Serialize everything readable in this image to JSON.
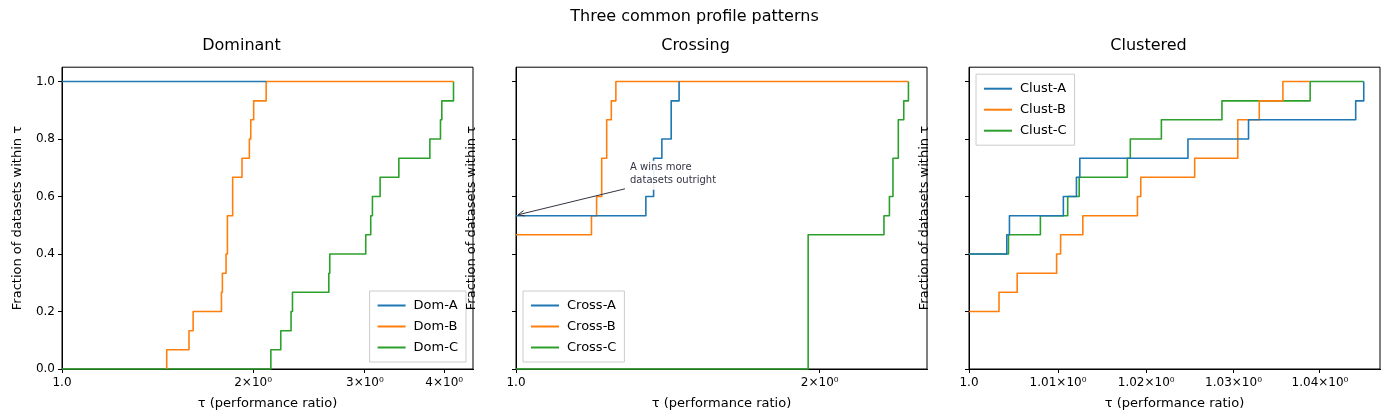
{
  "chart_data": [
    {
      "type": "step",
      "title": "Dominant",
      "xlabel": "τ (performance ratio)",
      "ylabel": "Fraction of datasets within τ",
      "log": "x",
      "legend": "bottom right",
      "annotations": [
        "Three common profile patterns"
      ],
      "xlim": [
        1,
        4.44
      ],
      "xticks": [
        {
          "value": 1,
          "label": "1.0"
        },
        {
          "value": 2,
          "label": "2×10⁰"
        },
        {
          "value": 3,
          "label": "3×10⁰"
        },
        {
          "value": 4,
          "label": "4×10⁰"
        }
      ],
      "ylim": [
        0,
        1.05
      ],
      "yticks": [
        {
          "value": 0,
          "label": "0.0"
        },
        0.2,
        0.4,
        0.6,
        0.8,
        {
          "value": 1,
          "label": "1.0"
        }
      ],
      "series": [
        {
          "name": "Dom-A",
          "color": "#1f77b4",
          "x": [
            1,
            2.097
          ],
          "values": [
            1,
            1
          ]
        },
        {
          "name": "Dom-B",
          "color": "#ff7f0e",
          "x": [
            1.462,
            1.462,
            1.585,
            1.609,
            1.783,
            1.789,
            1.813,
            1.822,
            1.857,
            1.921,
            1.973,
            1.983,
            2.004,
            2.097,
            4.137
          ],
          "values": [
            0,
            0.067,
            0.133,
            0.2,
            0.267,
            0.333,
            0.4,
            0.533,
            0.667,
            0.733,
            0.8,
            0.867,
            0.933,
            1,
            1
          ]
        },
        {
          "name": "Dom-C",
          "color": "#2ca02c",
          "x": [
            1,
            2.133,
            2.211,
            2.295,
            2.307,
            2.632,
            2.641,
            3.009,
            3.064,
            3.083,
            3.17,
            3.393,
            3.797,
            3.946,
            3.965,
            4.137
          ],
          "values": [
            0,
            0.067,
            0.133,
            0.2,
            0.267,
            0.333,
            0.4,
            0.467,
            0.533,
            0.6,
            0.667,
            0.733,
            0.8,
            0.867,
            0.933,
            1
          ]
        }
      ]
    },
    {
      "type": "step",
      "title": "Crossing",
      "xlabel": "τ (performance ratio)",
      "ylabel": "Fraction of datasets within τ",
      "log": "x",
      "legend": "bottom left",
      "tick_labels": "x",
      "annotations": [
        {
          "text": "A wins more\ndatasets outright",
          "x": 1,
          "y": 0.533
        }
      ],
      "xlim": [
        1,
        2.555
      ],
      "xticks": [
        {
          "value": 1,
          "label": "1.0"
        },
        {
          "value": 2,
          "label": "2×10⁰"
        }
      ],
      "ylim": [
        0,
        1.05
      ],
      "yticks": [
        0,
        0.2,
        0.4,
        0.6,
        0.8,
        1
      ],
      "series": [
        {
          "name": "Cross-A",
          "color": "#1f77b4",
          "x": [
            1,
            1.345,
            1.369,
            1.395,
            1.425,
            1.451
          ],
          "values": [
            0.533,
            0.6,
            0.733,
            0.8,
            0.933,
            1
          ]
        },
        {
          "name": "Cross-B",
          "color": "#ff7f0e",
          "x": [
            1,
            1.188,
            1.202,
            1.216,
            1.23,
            1.243,
            1.256,
            2.449
          ],
          "values": [
            0.467,
            0.533,
            0.6,
            0.733,
            0.867,
            0.933,
            1,
            1
          ]
        },
        {
          "name": "Cross-C",
          "color": "#2ca02c",
          "x": [
            1,
            1.948,
            2.316,
            2.345,
            2.364,
            2.393,
            2.423,
            2.449
          ],
          "values": [
            0,
            0.467,
            0.533,
            0.6,
            0.733,
            0.867,
            0.933,
            1
          ]
        }
      ]
    },
    {
      "type": "step",
      "title": "Clustered",
      "xlabel": "τ (performance ratio)",
      "ylabel": "Fraction of datasets within τ",
      "log": "x",
      "legend": "top left",
      "tick_labels": "x",
      "xlim": [
        1,
        1.047
      ],
      "xticks": [
        {
          "value": 1,
          "label": "1.0"
        },
        {
          "value": 1.01,
          "label": "1.01×10⁰"
        },
        {
          "value": 1.02,
          "label": "1.02×10⁰"
        },
        {
          "value": 1.03,
          "label": "1.03×10⁰"
        },
        {
          "value": 1.04,
          "label": "1.04×10⁰"
        }
      ],
      "ylim": [
        0,
        1.05
      ],
      "yticks": [
        0,
        0.2,
        0.4,
        0.6,
        0.8,
        1
      ],
      "series": [
        {
          "name": "Clust-A",
          "color": "#1f77b4",
          "x": [
            1,
            1.00423,
            1.00453,
            1.0106,
            1.01208,
            1.01246,
            1.02477,
            1.03173,
            1.04416,
            1.0451
          ],
          "values": [
            0.4,
            0.467,
            0.533,
            0.6,
            0.667,
            0.733,
            0.8,
            0.867,
            0.933,
            1
          ]
        },
        {
          "name": "Clust-B",
          "color": "#ff7f0e",
          "x": [
            1,
            1.00336,
            1.0054,
            1.00984,
            1.01029,
            1.0128,
            1.019,
            1.01938,
            1.02554,
            1.03049,
            1.03297,
            1.0357,
            1.03882
          ],
          "values": [
            0.2,
            0.267,
            0.333,
            0.4,
            0.467,
            0.533,
            0.6,
            0.667,
            0.733,
            0.867,
            0.933,
            1,
            1
          ]
        },
        {
          "name": "Clust-C",
          "color": "#2ca02c",
          "x": [
            1,
            1.00442,
            1.00801,
            1.01109,
            1.01239,
            1.01785,
            1.01819,
            1.02173,
            1.02867,
            1.03886,
            1.0451
          ],
          "values": [
            0.4,
            0.467,
            0.533,
            0.6,
            0.667,
            0.733,
            0.8,
            0.867,
            0.933,
            1,
            1
          ]
        }
      ]
    }
  ]
}
